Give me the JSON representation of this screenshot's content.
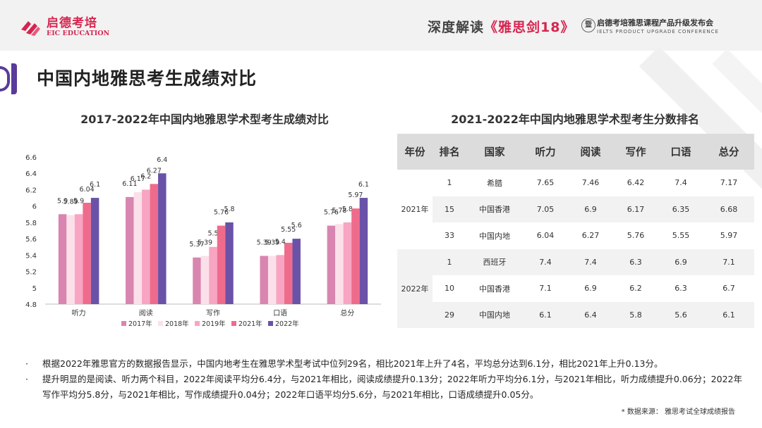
{
  "header": {
    "logo_cn": "启德考培",
    "logo_en": "EIC EDUCATION",
    "title_prefix": "深度解读",
    "title_book": "《雅思剑18》",
    "conf_icon": "暨",
    "conf_cn": "启德考培雅思课程产品升级发布会",
    "conf_en": "IELTS PRODUCT UPGRADE CONFERENCE"
  },
  "section_title": "中国内地雅思考生成绩对比",
  "colors": {
    "brand": "#d6254f",
    "accent_purple": "#5a3a9a",
    "s2017": "#d885b0",
    "s2018": "#fbe0ea",
    "s2019": "#f7a5c2",
    "s2021": "#ef6b8c",
    "s2022": "#6a52a8"
  },
  "chart_data": {
    "type": "bar",
    "title": "2017-2022年中国内地雅思学术型考生成绩对比",
    "categories": [
      "听力",
      "阅读",
      "写作",
      "口语",
      "总分"
    ],
    "series": [
      {
        "name": "2017年",
        "values": [
          5.9,
          6.11,
          5.37,
          5.39,
          5.76
        ]
      },
      {
        "name": "2018年",
        "values": [
          5.89,
          6.17,
          5.39,
          5.39,
          5.78
        ]
      },
      {
        "name": "2019年",
        "values": [
          5.9,
          6.2,
          5.5,
          5.4,
          5.8
        ]
      },
      {
        "name": "2021年",
        "values": [
          6.04,
          6.27,
          5.76,
          5.55,
          5.97
        ]
      },
      {
        "name": "2022年",
        "values": [
          6.1,
          6.4,
          5.8,
          5.6,
          6.1
        ]
      }
    ],
    "yticks": [
      "4.8",
      "5",
      "5.2",
      "5.4",
      "5.6",
      "5.8",
      "6",
      "6.2",
      "6.4",
      "6.6"
    ],
    "ylim": [
      4.8,
      6.6
    ],
    "legend": "bottom",
    "grid": false
  },
  "table": {
    "title": "2021-2022年中国内地雅思学术型考生分数排名",
    "headers": [
      "年份",
      "排名",
      "国家",
      "听力",
      "阅读",
      "写作",
      "口语",
      "总分"
    ],
    "groups": [
      {
        "year": "2021年",
        "rows": [
          [
            "1",
            "希腊",
            "7.65",
            "7.46",
            "6.42",
            "7.4",
            "7.17"
          ],
          [
            "15",
            "中国香港",
            "7.05",
            "6.9",
            "6.17",
            "6.35",
            "6.68"
          ],
          [
            "33",
            "中国内地",
            "6.04",
            "6.27",
            "5.76",
            "5.55",
            "5.97"
          ]
        ]
      },
      {
        "year": "2022年",
        "rows": [
          [
            "1",
            "西班牙",
            "7.4",
            "7.4",
            "6.3",
            "6.9",
            "7.1"
          ],
          [
            "10",
            "中国香港",
            "7.1",
            "6.9",
            "6.2",
            "6.3",
            "6.7"
          ],
          [
            "29",
            "中国内地",
            "6.1",
            "6.4",
            "5.8",
            "5.6",
            "6.1"
          ]
        ]
      }
    ]
  },
  "bullets": {
    "marker": "·",
    "b1": "根据2022年雅思官方的数据报告显示，中国内地考生在雅思学术型考试中位列29名，相比2021年上升了4名，平均总分达到6.1分，相比2021年上升0.13分。",
    "b2": "提升明显的是阅读、听力两个科目，2022年阅读平均分6.4分，与2021年相比，阅读成绩提升0.13分；2022年听力平均分6.1分，与2021年相比，听力成绩提升0.06分；2022年写作平均分5.8分，与2021年相比，写作成绩提升0.04分；2022年口语平均分5.6分，与2021年相比，口语成绩提升0.05分。"
  },
  "source": "* 数据来源： 雅思考试全球成绩报告"
}
